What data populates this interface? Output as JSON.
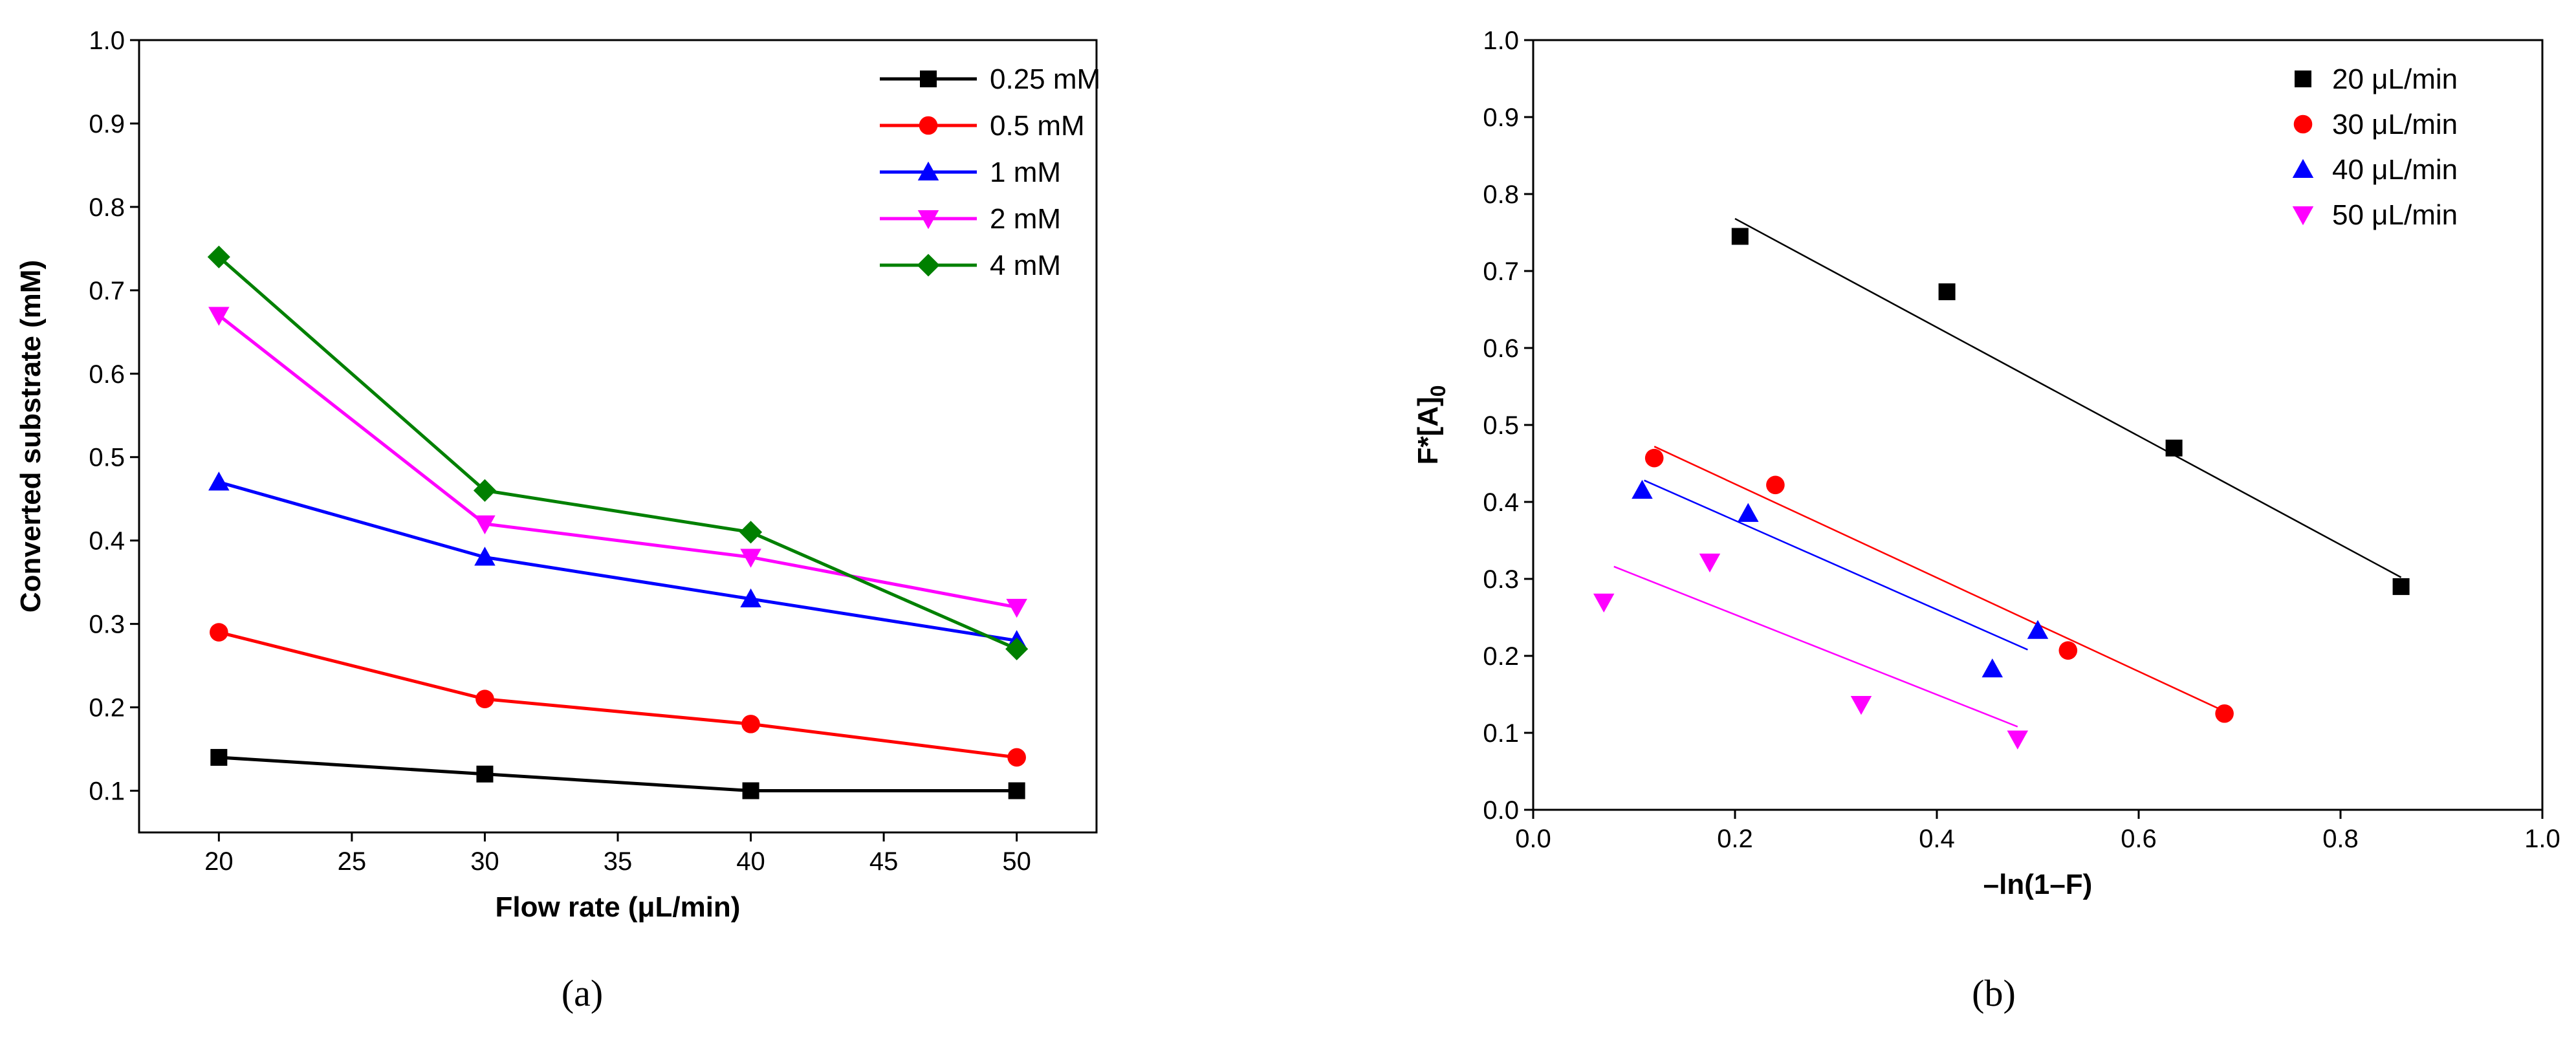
{
  "captions": [
    "(a)",
    "(b)"
  ],
  "chart_data": [
    {
      "type": "line",
      "xlabel": "Flow rate (μL/min)",
      "ylabel": "Converted substrate (mM)",
      "xlim": [
        17,
        53
      ],
      "ylim": [
        0.05,
        1.0
      ],
      "xticks": [
        20,
        25,
        30,
        35,
        40,
        45,
        50
      ],
      "yticks": [
        0.1,
        0.2,
        0.3,
        0.4,
        0.5,
        0.6,
        0.7,
        0.8,
        0.9,
        1.0
      ],
      "legend_position": "top-right",
      "x": [
        20,
        30,
        40,
        50
      ],
      "series": [
        {
          "name": "0.25 mM",
          "values": [
            0.14,
            0.12,
            0.1,
            0.1
          ],
          "color": "#000000",
          "marker": "square"
        },
        {
          "name": "0.5 mM",
          "values": [
            0.29,
            0.21,
            0.18,
            0.14
          ],
          "color": "#ff0000",
          "marker": "circle"
        },
        {
          "name": "1 mM",
          "values": [
            0.47,
            0.38,
            0.33,
            0.28
          ],
          "color": "#0000ff",
          "marker": "triangle-up"
        },
        {
          "name": "2 mM",
          "values": [
            0.67,
            0.42,
            0.38,
            0.32
          ],
          "color": "#ff00ff",
          "marker": "triangle-down"
        },
        {
          "name": "4 mM",
          "values": [
            0.74,
            0.46,
            0.41,
            0.27
          ],
          "color": "#008000",
          "marker": "diamond"
        }
      ]
    },
    {
      "type": "scatter",
      "xlabel": "–ln(1–F)",
      "ylabel_main": "F*[A]",
      "ylabel_sub": "0",
      "xlim": [
        0.0,
        1.0
      ],
      "ylim": [
        0.0,
        1.0
      ],
      "xticks": [
        0.0,
        0.2,
        0.4,
        0.6,
        0.8,
        1.0
      ],
      "yticks": [
        0.0,
        0.1,
        0.2,
        0.3,
        0.4,
        0.5,
        0.6,
        0.7,
        0.8,
        0.9,
        1.0
      ],
      "legend_position": "top-right",
      "series": [
        {
          "name": "20 μL/min",
          "color": "#000000",
          "marker": "square",
          "points": [
            [
              0.205,
              0.745
            ],
            [
              0.41,
              0.673
            ],
            [
              0.635,
              0.47
            ],
            [
              0.86,
              0.29
            ]
          ],
          "fit": [
            [
              0.2,
              0.768
            ],
            [
              0.86,
              0.302
            ]
          ]
        },
        {
          "name": "30 μL/min",
          "color": "#ff0000",
          "marker": "circle",
          "points": [
            [
              0.12,
              0.457
            ],
            [
              0.24,
              0.422
            ],
            [
              0.53,
              0.207
            ],
            [
              0.685,
              0.125
            ]
          ],
          "fit": [
            [
              0.12,
              0.472
            ],
            [
              0.685,
              0.128
            ]
          ]
        },
        {
          "name": "40 μL/min",
          "color": "#0000ff",
          "marker": "triangle-up",
          "points": [
            [
              0.108,
              0.415
            ],
            [
              0.213,
              0.385
            ],
            [
              0.455,
              0.183
            ],
            [
              0.5,
              0.233
            ]
          ],
          "fit": [
            [
              0.11,
              0.428
            ],
            [
              0.49,
              0.208
            ]
          ]
        },
        {
          "name": "50 μL/min",
          "color": "#ff00ff",
          "marker": "triangle-down",
          "points": [
            [
              0.07,
              0.27
            ],
            [
              0.175,
              0.322
            ],
            [
              0.325,
              0.137
            ],
            [
              0.48,
              0.092
            ]
          ],
          "fit": [
            [
              0.08,
              0.316
            ],
            [
              0.48,
              0.108
            ]
          ]
        }
      ]
    }
  ]
}
